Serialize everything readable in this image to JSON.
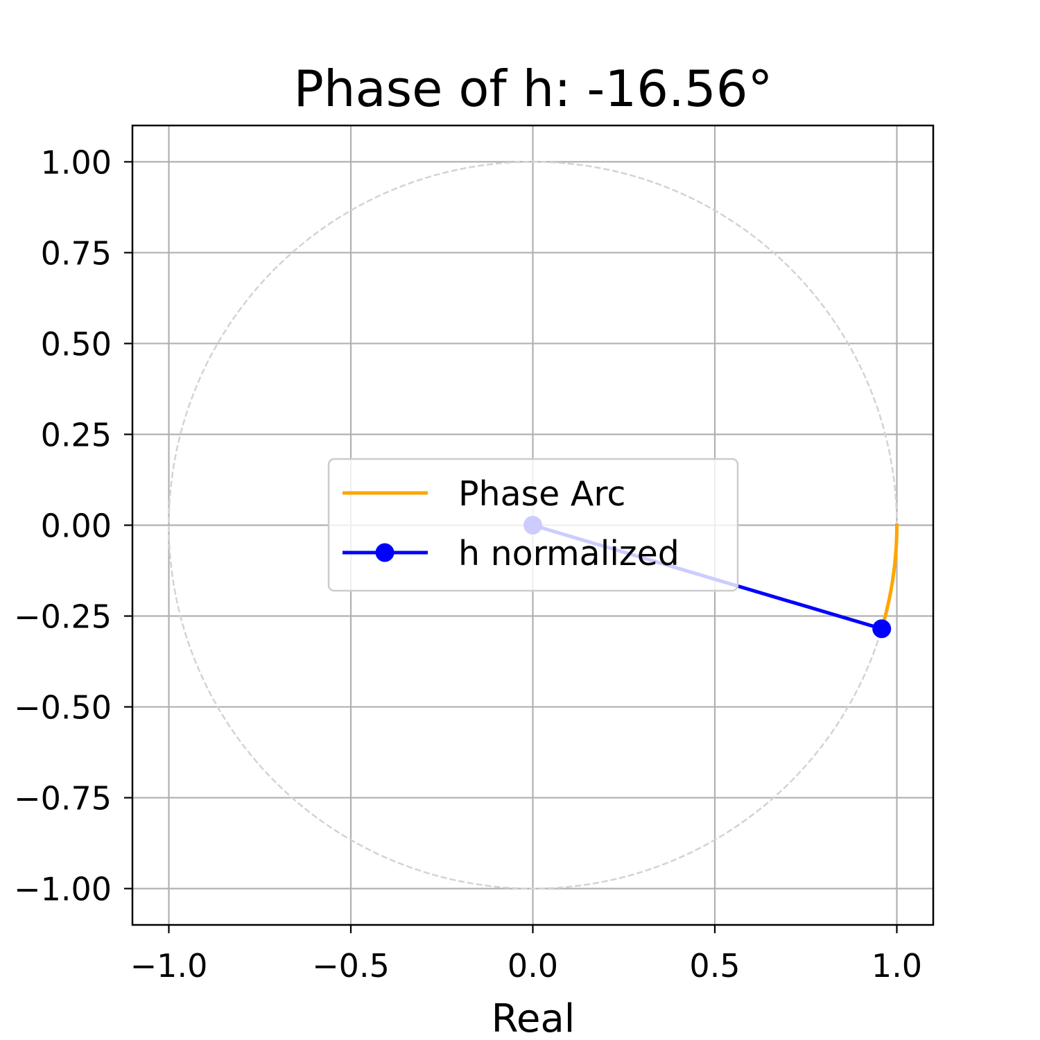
{
  "chart_data": {
    "type": "line",
    "title": "Phase of h: -16.56°",
    "xlabel": "Real",
    "ylabel": "",
    "xlim": [
      -1.1,
      1.1
    ],
    "ylim": [
      -1.1,
      1.1
    ],
    "xticks": [
      -1.0,
      -0.5,
      0.0,
      0.5,
      1.0
    ],
    "xtick_labels": [
      "−1.0",
      "−0.5",
      "0.0",
      "0.5",
      "1.0"
    ],
    "yticks": [
      1.0,
      0.75,
      0.5,
      0.25,
      0.0,
      -0.25,
      -0.5,
      -0.75,
      -1.0
    ],
    "ytick_labels": [
      "1.00",
      "0.75",
      "0.50",
      "0.25",
      "0.00",
      "−0.25",
      "−0.50",
      "−0.75",
      "−1.00"
    ],
    "grid": true,
    "aspect": "equal",
    "legend_position": "center",
    "unit_circle": {
      "radius": 1.0,
      "color": "#d3d3d3",
      "style": "dashed"
    },
    "phase_degrees": -16.56,
    "series": [
      {
        "name": "Phase Arc",
        "kind": "arc",
        "color": "#ffa500",
        "radius": 1.0,
        "start_angle_deg": 0.0,
        "end_angle_deg": -16.56
      },
      {
        "name": "h normalized",
        "kind": "line-marker",
        "color": "#0000ff",
        "x": [
          0.0,
          0.9585
        ],
        "y": [
          0.0,
          -0.285
        ]
      }
    ]
  }
}
